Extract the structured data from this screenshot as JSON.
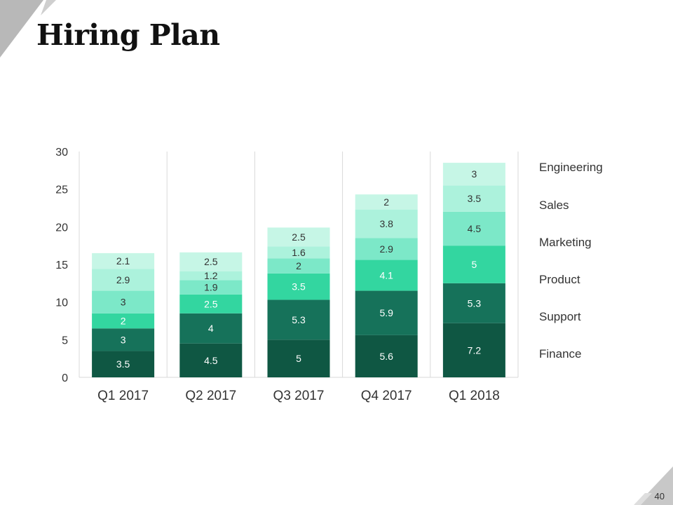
{
  "title": "Hiring Plan",
  "page_number": "40",
  "colors": {
    "finance": "#0f5743",
    "support": "#16725a",
    "product": "#33d6a0",
    "marketing": "#7ce8c8",
    "sales": "#acf2dc",
    "engineering": "#c6f6e6",
    "grid": "#d9d9d9",
    "text": "#333333",
    "decor": "#b5b5b5"
  },
  "chart_data": {
    "type": "bar",
    "stacked": true,
    "title": "",
    "xlabel": "",
    "ylabel": "",
    "ylim": [
      0,
      30
    ],
    "yticks": [
      "0",
      "5",
      "10",
      "15",
      "20",
      "25",
      "30"
    ],
    "categories": [
      "Q1 2017",
      "Q2 2017",
      "Q3 2017",
      "Q4 2017",
      "Q1 2018"
    ],
    "series": [
      {
        "name": "Finance",
        "values": [
          3.5,
          4.5,
          5,
          5.6,
          7.2
        ],
        "labels": [
          "3.5",
          "4.5",
          "5",
          "5.6",
          "7.2"
        ]
      },
      {
        "name": "Support",
        "values": [
          3,
          4,
          5.3,
          5.9,
          5.3
        ],
        "labels": [
          "3",
          "4",
          "5.3",
          "5.9",
          "5.3"
        ]
      },
      {
        "name": "Product",
        "values": [
          2,
          2.5,
          3.5,
          4.1,
          5
        ],
        "labels": [
          "2",
          "2.5",
          "3.5",
          "4.1",
          "5"
        ]
      },
      {
        "name": "Marketing",
        "values": [
          3,
          1.9,
          2,
          2.9,
          4.5
        ],
        "labels": [
          "3",
          "1.9",
          "2",
          "2.9",
          "4.5"
        ]
      },
      {
        "name": "Sales",
        "values": [
          2.9,
          1.2,
          1.6,
          3.8,
          3.5
        ],
        "labels": [
          "2.9",
          "1.2",
          "1.6",
          "3.8",
          "3.5"
        ]
      },
      {
        "name": "Engineering",
        "values": [
          2.1,
          2.5,
          2.5,
          2,
          3
        ],
        "labels": [
          "2.1",
          "2.5",
          "2.5",
          "2",
          "3"
        ]
      }
    ],
    "legend": {
      "position": "right",
      "entries": [
        "Engineering",
        "Sales",
        "Marketing",
        "Product",
        "Support",
        "Finance"
      ]
    },
    "grid": "vertical separators between categories"
  }
}
